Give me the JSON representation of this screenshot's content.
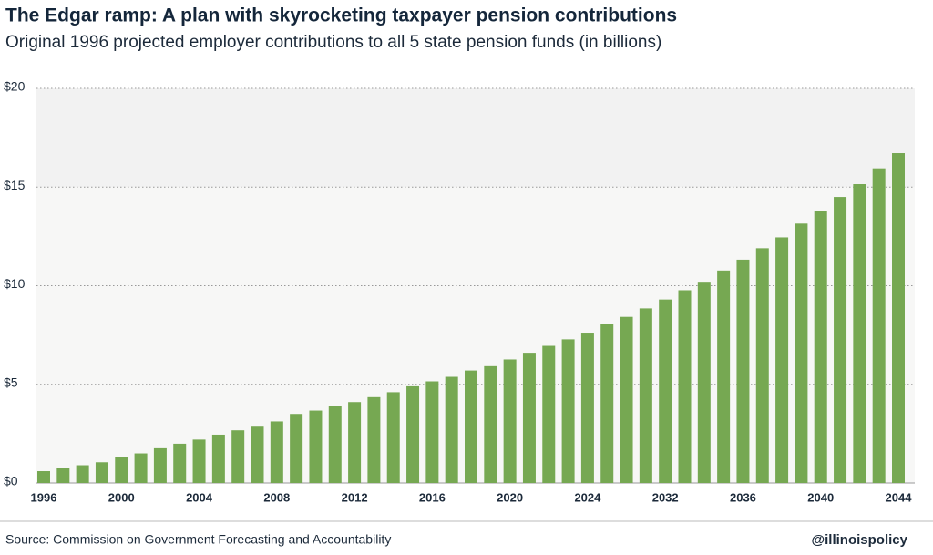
{
  "chart_data": {
    "type": "bar",
    "title": "The Edgar ramp: A plan with skyrocketing taxpayer pension contributions",
    "subtitle": "Original 1996 projected employer contributions to all 5 state pension funds (in billions)",
    "source": "Source: Commission on Government Forecasting and Accountability",
    "credit": "@illinoispolicy",
    "categories": [
      "1996",
      null,
      null,
      null,
      "2000",
      null,
      null,
      null,
      "2004",
      null,
      null,
      null,
      "2008",
      null,
      null,
      null,
      "2012",
      null,
      null,
      null,
      "2016",
      null,
      null,
      null,
      "2020",
      null,
      null,
      null,
      "2024",
      null,
      null,
      null,
      "2032",
      null,
      null,
      null,
      "2036",
      null,
      null,
      null,
      "2040",
      null,
      null,
      null,
      "2044"
    ],
    "values": [
      0.6,
      0.75,
      0.9,
      1.05,
      1.3,
      1.5,
      1.76,
      1.99,
      2.2,
      2.45,
      2.67,
      2.9,
      3.12,
      3.5,
      3.67,
      3.9,
      4.1,
      4.35,
      4.6,
      4.9,
      5.15,
      5.38,
      5.7,
      5.92,
      6.26,
      6.6,
      6.95,
      7.28,
      7.62,
      8.05,
      8.42,
      8.85,
      9.3,
      9.77,
      10.2,
      10.77,
      11.32,
      11.9,
      12.45,
      13.15,
      13.8,
      14.5,
      15.15,
      15.95,
      16.72
    ],
    "color": "#76a852",
    "ylim": [
      0,
      20
    ],
    "yticks": [
      {
        "value": 0,
        "label": "$0"
      },
      {
        "value": 5,
        "label": "$5"
      },
      {
        "value": 10,
        "label": "$10"
      },
      {
        "value": 15,
        "label": "$15"
      },
      {
        "value": 20,
        "label": "$20"
      }
    ],
    "grid": true
  }
}
